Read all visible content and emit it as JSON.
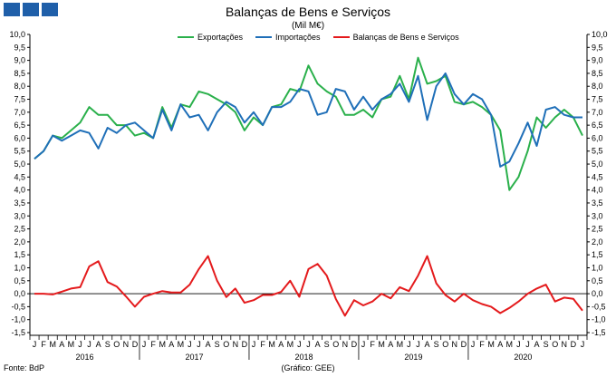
{
  "logo": {
    "color": "#1f5fa9",
    "squares": 3
  },
  "title": "Balanças de Bens e Serviços",
  "subtitle": "(Mil M€)",
  "source": "Fonte: BdP",
  "credit": "(Gráfico: GEE)",
  "chart_data": {
    "type": "line",
    "title": "Balanças de Bens e Serviços",
    "unit": "(Mil M€)",
    "legend_position": "top",
    "grid": false,
    "ylim": [
      -1.5,
      10.0
    ],
    "ytick_step": 0.5,
    "ytick_labels": [
      "-1,5",
      "-1,0",
      "-0,5",
      "0,0",
      "0,5",
      "1,0",
      "1,5",
      "2,0",
      "2,5",
      "3,0",
      "3,5",
      "4,0",
      "4,5",
      "5,0",
      "5,5",
      "6,0",
      "6,5",
      "7,0",
      "7,5",
      "8,0",
      "8,5",
      "9,0",
      "9,5",
      "10,0"
    ],
    "month_labels": [
      "J",
      "F",
      "M",
      "A",
      "M",
      "J",
      "J",
      "A",
      "S",
      "O",
      "N",
      "D"
    ],
    "years": [
      "2016",
      "2017",
      "2018",
      "2019",
      "2020"
    ],
    "series": [
      {
        "name": "Exportações",
        "color": "#2ab04b",
        "values": [
          5.2,
          5.5,
          6.1,
          6.0,
          6.3,
          6.6,
          7.2,
          6.9,
          6.9,
          6.5,
          6.5,
          6.1,
          6.2,
          6.0,
          7.2,
          6.4,
          7.3,
          7.2,
          7.8,
          7.7,
          7.5,
          7.3,
          7.0,
          6.3,
          6.8,
          6.5,
          7.2,
          7.3,
          7.9,
          7.8,
          8.8,
          8.1,
          7.8,
          7.6,
          6.9,
          6.9,
          7.1,
          6.8,
          7.5,
          7.6,
          8.4,
          7.5,
          9.1,
          8.1,
          8.2,
          8.4,
          7.4,
          7.3,
          7.4,
          7.2,
          6.9,
          6.3,
          4.0,
          4.5,
          5.5,
          6.8,
          6.4,
          6.8,
          7.1,
          6.8,
          6.1
        ]
      },
      {
        "name": "Importações",
        "color": "#1f6fb8",
        "values": [
          5.2,
          5.5,
          6.1,
          5.9,
          6.1,
          6.3,
          6.2,
          5.6,
          6.4,
          6.2,
          6.5,
          6.6,
          6.3,
          6.0,
          7.1,
          6.3,
          7.3,
          6.8,
          6.9,
          6.3,
          7.0,
          7.4,
          7.2,
          6.6,
          7.0,
          6.5,
          7.2,
          7.2,
          7.4,
          7.9,
          7.8,
          6.9,
          7.0,
          7.9,
          7.8,
          7.1,
          7.6,
          7.1,
          7.5,
          7.7,
          8.1,
          7.4,
          8.4,
          6.7,
          8.0,
          8.5,
          7.7,
          7.3,
          7.7,
          7.5,
          6.9,
          4.9,
          5.1,
          5.8,
          6.6,
          5.7,
          7.1,
          7.2,
          6.9,
          6.8,
          6.8
        ]
      },
      {
        "name": "Balanças de Bens e Serviços",
        "color": "#e41a1c",
        "values": [
          0.0,
          0.0,
          -0.03,
          0.08,
          0.2,
          0.25,
          1.05,
          1.25,
          0.45,
          0.28,
          -0.1,
          -0.5,
          -0.12,
          0.0,
          0.1,
          0.05,
          0.05,
          0.35,
          0.95,
          1.45,
          0.5,
          -0.13,
          0.2,
          -0.35,
          -0.25,
          -0.05,
          -0.05,
          0.07,
          0.5,
          -0.12,
          0.95,
          1.15,
          0.7,
          -0.2,
          -0.85,
          -0.25,
          -0.45,
          -0.3,
          0.0,
          -0.18,
          0.25,
          0.1,
          0.7,
          1.45,
          0.4,
          -0.05,
          -0.3,
          0.0,
          -0.25,
          -0.4,
          -0.5,
          -0.75,
          -0.55,
          -0.3,
          0.0,
          0.2,
          0.35,
          -0.3,
          -0.15,
          -0.2,
          -0.65
        ]
      }
    ]
  }
}
